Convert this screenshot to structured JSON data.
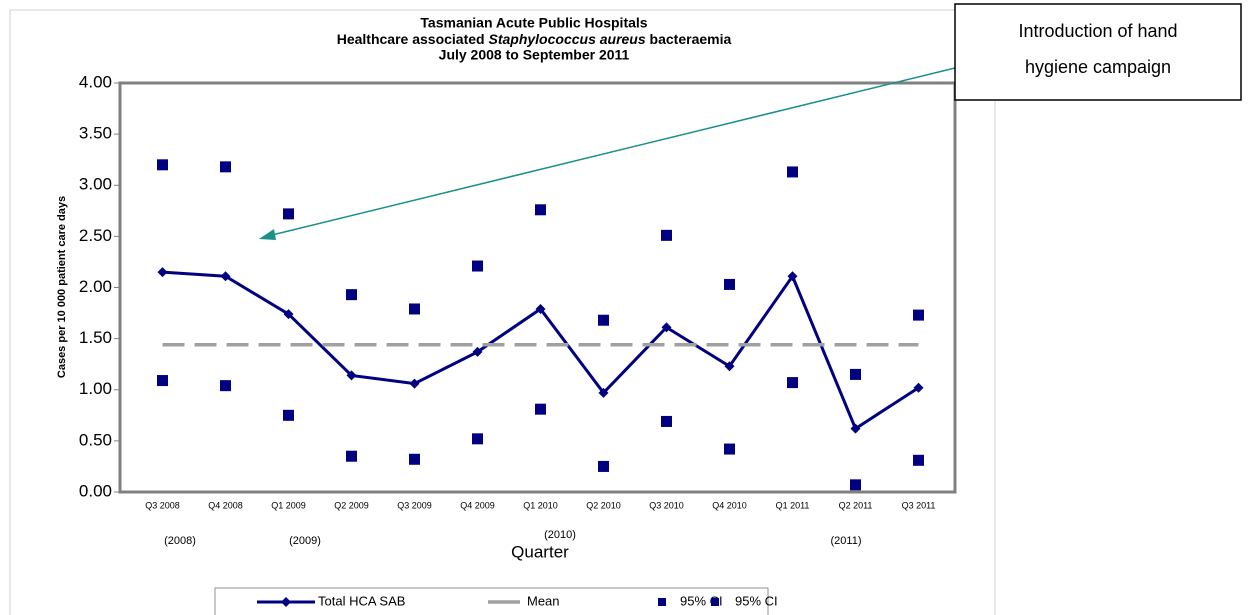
{
  "chart_data": {
    "type": "line",
    "title": [
      "Tasmanian Acute Public Hospitals",
      [
        "Healthcare associated ",
        "Staphylococcus aureus",
        " bacteraemia"
      ],
      "July 2008 to September 2011"
    ],
    "xlabel": "Quarter",
    "ylabel": "Cases per 10 000 patient care days",
    "categories": [
      "Q3 2008",
      "Q4 2008",
      "Q1 2009",
      "Q2 2009",
      "Q3 2009",
      "Q4 2009",
      "Q1 2010",
      "Q2 2010",
      "Q3 2010",
      "Q4 2010",
      "Q1 2011",
      "Q2 2011",
      "Q3 2011"
    ],
    "year_labels": [
      "(2008)",
      "(2009)",
      "(2010)",
      "(2011)"
    ],
    "series": [
      {
        "name": "Total HCA SAB",
        "color": "#000080",
        "style": "line",
        "marker": "diamond",
        "values": [
          2.15,
          2.11,
          1.74,
          1.14,
          1.06,
          1.37,
          1.79,
          0.97,
          1.61,
          1.23,
          2.11,
          0.62,
          1.02
        ]
      },
      {
        "name": "Mean",
        "color": "#a0a0a0",
        "style": "dash",
        "marker": "none",
        "values": [
          1.44,
          1.44,
          1.44,
          1.44,
          1.44,
          1.44,
          1.44,
          1.44,
          1.44,
          1.44,
          1.44,
          1.44,
          1.44
        ]
      },
      {
        "name": "95% CI",
        "color": "#000080",
        "style": "none",
        "marker": "square",
        "values": [
          3.2,
          3.18,
          2.72,
          1.93,
          1.79,
          2.21,
          2.76,
          1.68,
          2.51,
          2.03,
          3.13,
          1.15,
          1.73
        ]
      },
      {
        "name": "95% CI",
        "color": "#000080",
        "style": "none",
        "marker": "square",
        "values": [
          1.09,
          1.04,
          0.75,
          0.35,
          0.32,
          0.52,
          0.81,
          0.25,
          0.69,
          0.42,
          1.07,
          0.07,
          0.31
        ]
      }
    ],
    "ylim": [
      0,
      4
    ],
    "yticks": [
      {
        "value": 0,
        "label": "0.00"
      },
      {
        "value": 0.5,
        "label": "0.50"
      },
      {
        "value": 1,
        "label": "1.00"
      },
      {
        "value": 1.5,
        "label": "1.50"
      },
      {
        "value": 2,
        "label": "2.00"
      },
      {
        "value": 2.5,
        "label": "2.50"
      },
      {
        "value": 3,
        "label": "3.00"
      },
      {
        "value": 3.5,
        "label": "3.50"
      },
      {
        "value": 4,
        "label": "4.00"
      }
    ],
    "annotation": [
      "Introduction of hand",
      "hygiene campaign"
    ],
    "legend": "bottom"
  }
}
